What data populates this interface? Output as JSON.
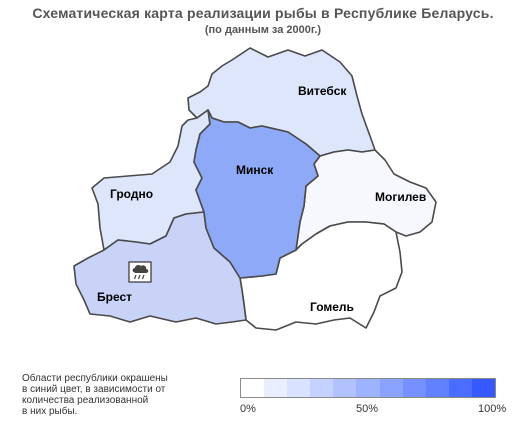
{
  "title": "Схематическая карта реализации рыбы в Республике Беларусь.",
  "subtitle": "(по данным за 2000г.)",
  "regions": [
    {
      "id": "vitebsk",
      "name": "Витебск",
      "fill": "#dee6fb"
    },
    {
      "id": "grodno",
      "name": "Гродно",
      "fill": "#dee6fb"
    },
    {
      "id": "minsk",
      "name": "Минск",
      "fill": "#8ea9f8"
    },
    {
      "id": "mogilev",
      "name": "Могилев",
      "fill": "#f7f8fe"
    },
    {
      "id": "brest",
      "name": "Брест",
      "fill": "#c8d3f7"
    },
    {
      "id": "gomel",
      "name": "Гомель",
      "fill": "#ffffff"
    }
  ],
  "markers": [
    {
      "region": "brest",
      "icon": "rain-cloud-icon"
    }
  ],
  "legend": {
    "note": "Области республики окрашены в синий цвет, в зависимости от количества реализованной в них рыбы.",
    "note_lines": [
      "Области республики окрашены",
      "в синий цвет, в зависимости от",
      "количества реализованной",
      "в них рыбы."
    ],
    "colors": [
      "#ffffff",
      "#eaefff",
      "#d9e2ff",
      "#c5d2ff",
      "#b2c2ff",
      "#9db3ff",
      "#8aa3ff",
      "#7691ff",
      "#6281ff",
      "#4a6cff",
      "#3558ff"
    ],
    "ticks": [
      "0%",
      "50%",
      "100%"
    ]
  }
}
